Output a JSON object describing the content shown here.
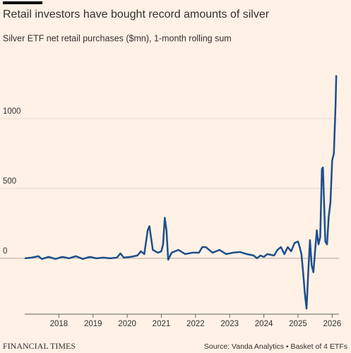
{
  "chart_data": {
    "type": "line",
    "title": "Retail investors have bought record amounts of silver",
    "subtitle": "Silver ETF net retail purchases ($mn), 1-month rolling sum",
    "brand": "FINANCIAL TIMES",
    "source": "Source: Vanda Analytics • Basket of 4 ETFs",
    "color": "#1d4f8c",
    "grid": true,
    "xlim": [
      2017,
      2026.2
    ],
    "xticks": [
      2018,
      2019,
      2020,
      2021,
      2022,
      2023,
      2024,
      2025,
      2026
    ],
    "ylim": [
      -400,
      1400
    ],
    "yticks": [
      0,
      500,
      1000
    ],
    "x": [
      2017.0,
      2017.2,
      2017.4,
      2017.5,
      2017.7,
      2017.9,
      2018.1,
      2018.3,
      2018.5,
      2018.7,
      2018.9,
      2019.1,
      2019.3,
      2019.5,
      2019.7,
      2019.8,
      2019.9,
      2020.1,
      2020.3,
      2020.4,
      2020.5,
      2020.6,
      2020.65,
      2020.75,
      2020.9,
      2021.0,
      2021.05,
      2021.1,
      2021.15,
      2021.2,
      2021.3,
      2021.5,
      2021.7,
      2021.9,
      2022.1,
      2022.2,
      2022.3,
      2022.5,
      2022.7,
      2022.9,
      2023.1,
      2023.3,
      2023.5,
      2023.7,
      2023.8,
      2023.9,
      2024.0,
      2024.1,
      2024.3,
      2024.4,
      2024.5,
      2024.6,
      2024.7,
      2024.8,
      2024.9,
      2025.0,
      2025.05,
      2025.1,
      2025.15,
      2025.2,
      2025.25,
      2025.3,
      2025.35,
      2025.4,
      2025.45,
      2025.5,
      2025.55,
      2025.6,
      2025.65,
      2025.7,
      2025.73,
      2025.8,
      2025.85,
      2025.9,
      2025.95,
      2026.0,
      2026.05,
      2026.1,
      2026.12
    ],
    "values": [
      0,
      5,
      15,
      -5,
      10,
      -5,
      10,
      0,
      15,
      -5,
      10,
      0,
      5,
      0,
      5,
      35,
      5,
      10,
      20,
      50,
      30,
      200,
      230,
      60,
      40,
      50,
      100,
      290,
      200,
      -10,
      40,
      60,
      30,
      40,
      40,
      80,
      80,
      40,
      60,
      30,
      40,
      45,
      30,
      20,
      0,
      20,
      10,
      30,
      20,
      60,
      80,
      30,
      80,
      50,
      110,
      120,
      80,
      30,
      -100,
      -250,
      -360,
      -100,
      130,
      -50,
      -100,
      50,
      200,
      100,
      150,
      640,
      650,
      120,
      100,
      300,
      400,
      700,
      750,
      1100,
      1310
    ]
  }
}
